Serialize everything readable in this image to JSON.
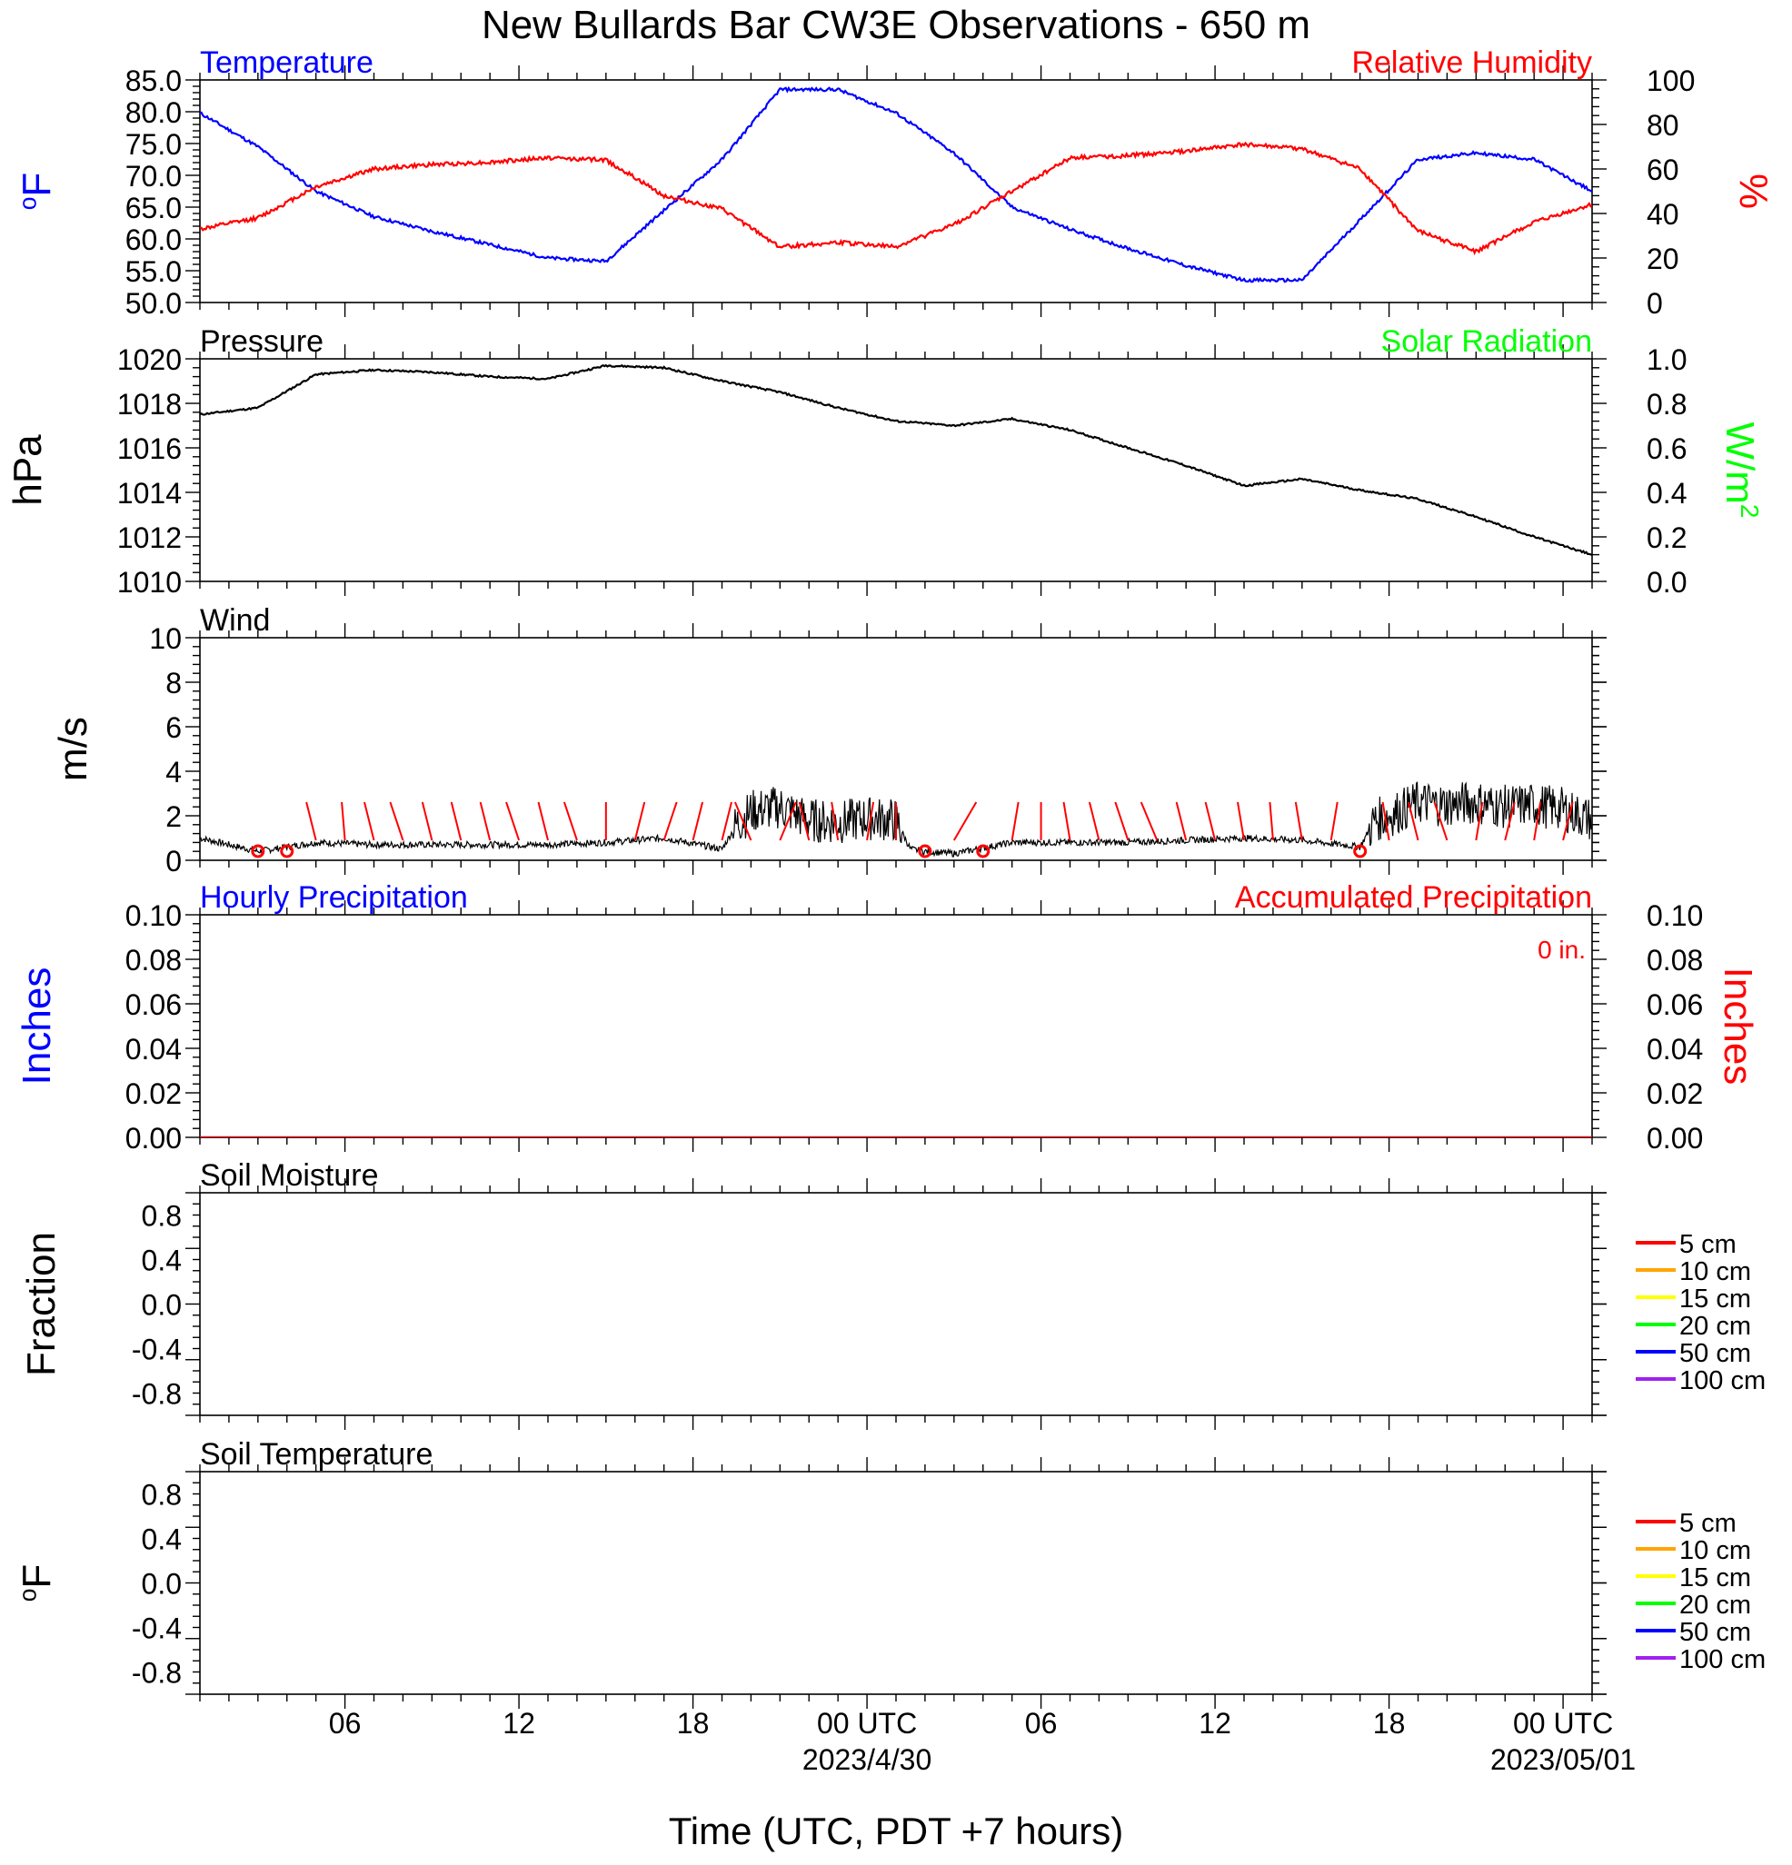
{
  "title": "New Bullards Bar CW3E Observations - 650 m",
  "xlabel": "Time (UTC, PDT +7 hours)",
  "colors": {
    "temperature": "#0000ff",
    "humidity": "#ff0000",
    "pressure": "#000000",
    "solar": "#00ff00",
    "wind_speed": "#000000",
    "wind_barb": "#ff0000",
    "precip_hourly": "#0000ff",
    "precip_accum": "#ff0000",
    "depth_5": "#ff0000",
    "depth_10": "#ffa500",
    "depth_15": "#ffff00",
    "depth_20": "#00ff00",
    "depth_50": "#0000ff",
    "depth_100": "#a020f0"
  },
  "chart_data": [
    {
      "id": "temp_rh",
      "type": "line",
      "left_title": "Temperature",
      "right_title": "Relative Humidity",
      "ylabel_left": "oF",
      "ylabel_right": "%",
      "ylim_left": [
        50,
        85
      ],
      "ylim_right": [
        0,
        100
      ],
      "yticks_left": [
        "50.0",
        "55.0",
        "60.0",
        "65.0",
        "70.0",
        "75.0",
        "80.0",
        "85.0"
      ],
      "yticks_right": [
        "0",
        "20",
        "40",
        "60",
        "80",
        "100"
      ],
      "x_hours": [
        0,
        2,
        4,
        6,
        8,
        10,
        12,
        14,
        16,
        18,
        20,
        22,
        24,
        26,
        28,
        30,
        32,
        34,
        36,
        38,
        40,
        42,
        44,
        46,
        48
      ],
      "series": [
        {
          "name": "Temperature",
          "axis": "left",
          "values": [
            79.8,
            74.5,
            67.5,
            63.5,
            61.2,
            59.1,
            57.0,
            56.5,
            64.5,
            72.5,
            83.5,
            83.5,
            79.8,
            73.5,
            65.0,
            61.5,
            58.5,
            55.8,
            53.5,
            53.5,
            63.0,
            72.5,
            73.5,
            72.5,
            67.5
          ]
        },
        {
          "name": "Relative Humidity",
          "axis": "right",
          "values": [
            33,
            38,
            52,
            60,
            62,
            63,
            65,
            64,
            48,
            42,
            25,
            27,
            25,
            35,
            50,
            65,
            66,
            68,
            71,
            69,
            60,
            32,
            23,
            36,
            44
          ]
        }
      ]
    },
    {
      "id": "pressure",
      "type": "line",
      "left_title": "Pressure",
      "right_title": "Solar Radiation",
      "ylabel_left": "hPa",
      "ylabel_right": "W/m",
      "ylabel_right_sup": "2",
      "ylim_left": [
        1010,
        1020
      ],
      "ylim_right": [
        0,
        1
      ],
      "yticks_left": [
        "1010",
        "1012",
        "1014",
        "1016",
        "1018",
        "1020"
      ],
      "yticks_right": [
        "0.0",
        "0.2",
        "0.4",
        "0.6",
        "0.8",
        "1.0"
      ],
      "x_hours": [
        0,
        2,
        4,
        6,
        8,
        10,
        12,
        14,
        16,
        18,
        20,
        22,
        24,
        26,
        28,
        30,
        32,
        34,
        36,
        38,
        40,
        42,
        44,
        46,
        48
      ],
      "series": [
        {
          "name": "Pressure",
          "axis": "left",
          "values": [
            1017.5,
            1017.8,
            1019.3,
            1019.5,
            1019.4,
            1019.2,
            1019.1,
            1019.7,
            1019.6,
            1019.0,
            1018.5,
            1017.8,
            1017.2,
            1017.0,
            1017.3,
            1016.8,
            1016.0,
            1015.2,
            1014.3,
            1014.6,
            1014.1,
            1013.7,
            1012.9,
            1012.0,
            1011.2
          ]
        }
      ]
    },
    {
      "id": "wind",
      "type": "line",
      "left_title": "Wind",
      "ylabel_left": "m/s",
      "ylim_left": [
        0,
        10
      ],
      "yticks_left": [
        "0",
        "2",
        "4",
        "6",
        "8",
        "10"
      ],
      "x_hours": [
        0,
        2,
        4,
        6,
        8,
        10,
        12,
        14,
        16,
        18,
        18.5,
        19,
        20,
        21,
        22,
        23,
        24,
        24.5,
        25,
        26,
        28,
        30,
        32,
        34,
        36,
        38,
        40,
        40.5,
        41,
        42,
        43,
        44,
        45,
        46,
        47,
        48
      ],
      "series": [
        {
          "name": "Wind Speed",
          "axis": "left",
          "values": [
            1.0,
            0.4,
            0.8,
            0.7,
            0.7,
            0.7,
            0.7,
            0.8,
            1.0,
            0.5,
            1.6,
            2.2,
            2.4,
            1.8,
            1.7,
            1.9,
            1.8,
            0.5,
            0.4,
            0.3,
            0.8,
            0.8,
            0.8,
            0.9,
            1.0,
            0.9,
            0.6,
            1.8,
            2.0,
            2.6,
            2.5,
            2.6,
            2.4,
            2.5,
            2.3,
            1.8
          ]
        }
      ],
      "calm_hours": [
        2,
        3,
        25,
        27,
        40
      ],
      "barb_hours": [
        4,
        5,
        6,
        7,
        8,
        9,
        10,
        11,
        12,
        13,
        14,
        15,
        16,
        17,
        18,
        19,
        20,
        21,
        22,
        23,
        24,
        26,
        28,
        29,
        30,
        31,
        32,
        33,
        34,
        35,
        36,
        37,
        38,
        39,
        41,
        42,
        43,
        44,
        45,
        46,
        47
      ],
      "barb_tilt": [
        -3,
        -1,
        -3,
        -4,
        -3,
        -3,
        -3,
        -4,
        -3,
        -4,
        0,
        3,
        4,
        3,
        3,
        -5,
        5,
        -3,
        -2,
        2,
        0,
        7,
        2,
        0,
        -2,
        -3,
        -4,
        -5,
        -3,
        -3,
        -2,
        -1,
        -2,
        2,
        -2,
        -3,
        -4,
        2,
        3,
        2,
        3
      ]
    },
    {
      "id": "precip",
      "type": "line",
      "left_title": "Hourly Precipitation",
      "right_title": "Accumulated Precipitation",
      "ylabel_left": "Inches",
      "ylabel_right": "Inches",
      "annotation": "0 in.",
      "ylim_left": [
        0,
        0.1
      ],
      "ylim_right": [
        0,
        0.1
      ],
      "yticks_left": [
        "0.00",
        "0.02",
        "0.04",
        "0.06",
        "0.08",
        "0.10"
      ],
      "yticks_right": [
        "0.00",
        "0.02",
        "0.04",
        "0.06",
        "0.08",
        "0.10"
      ],
      "x_hours": [
        0,
        48
      ],
      "series": [
        {
          "name": "Hourly Precipitation",
          "axis": "left",
          "values": [
            0,
            0
          ]
        },
        {
          "name": "Accumulated Precipitation",
          "axis": "right",
          "values": [
            0,
            0
          ]
        }
      ]
    },
    {
      "id": "soil_moisture",
      "type": "line",
      "left_title": "Soil Moisture",
      "ylabel_left": "Fraction",
      "ylim_left": [
        -1,
        1
      ],
      "yticks_left": [
        "-0.8",
        "-0.4",
        "0.0",
        "0.4",
        "0.8"
      ],
      "series": [],
      "legend": [
        "5 cm",
        "10 cm",
        "15 cm",
        "20 cm",
        "50 cm",
        "100 cm"
      ]
    },
    {
      "id": "soil_temperature",
      "type": "line",
      "left_title": "Soil Temperature",
      "ylabel_left": "oF",
      "ylim_left": [
        -1,
        1
      ],
      "yticks_left": [
        "-0.8",
        "-0.4",
        "0.0",
        "0.4",
        "0.8"
      ],
      "series": [],
      "legend": [
        "5 cm",
        "10 cm",
        "15 cm",
        "20 cm",
        "50 cm",
        "100 cm"
      ]
    }
  ],
  "xaxis": {
    "xlim_hours": [
      0,
      48
    ],
    "ticks": [
      {
        "hour": 5,
        "label": "06",
        "date": ""
      },
      {
        "hour": 11,
        "label": "12",
        "date": ""
      },
      {
        "hour": 17,
        "label": "18",
        "date": ""
      },
      {
        "hour": 23,
        "label": "00 UTC",
        "date": "2023/4/30"
      },
      {
        "hour": 29,
        "label": "06",
        "date": ""
      },
      {
        "hour": 35,
        "label": "12",
        "date": ""
      },
      {
        "hour": 41,
        "label": "18",
        "date": ""
      },
      {
        "hour": 47,
        "label": "00 UTC",
        "date": "2023/05/01"
      }
    ]
  }
}
